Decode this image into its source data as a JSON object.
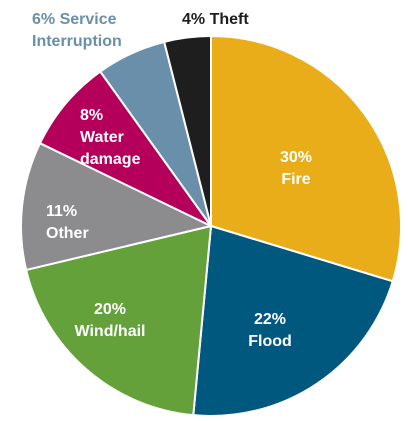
{
  "chart_data": {
    "type": "pie",
    "slices": [
      {
        "label": "Fire",
        "value": 30,
        "value_text": "30%",
        "color": "#E8AD18",
        "label_color": "#ffffff",
        "label_lines": [
          "30%",
          "Fire"
        ]
      },
      {
        "label": "Flood",
        "value": 22,
        "value_text": "22%",
        "color": "#00587F",
        "label_color": "#ffffff",
        "label_lines": [
          "22%",
          "Flood"
        ]
      },
      {
        "label": "Wind/hail",
        "value": 20,
        "value_text": "20%",
        "color": "#64A13A",
        "label_color": "#ffffff",
        "label_lines": [
          "20%",
          "Wind/hail"
        ]
      },
      {
        "label": "Other",
        "value": 11,
        "value_text": "11%",
        "color": "#8C8C8E",
        "label_color": "#ffffff",
        "label_lines": [
          "11%",
          "Other"
        ]
      },
      {
        "label": "Water damage",
        "value": 8,
        "value_text": "8%",
        "color": "#B4005A",
        "label_color": "#ffffff",
        "label_lines": [
          "8%",
          "Water",
          "damage"
        ]
      },
      {
        "label": "Service Interruption",
        "value": 6,
        "value_text": "6%",
        "color": "#6A8FAA",
        "label_color": "#6A8FAA",
        "label_lines": [
          "6% Service",
          "Interruption"
        ],
        "label_outside": true
      },
      {
        "label": "Theft",
        "value": 4,
        "value_text": "4%",
        "color": "#1E1E1E",
        "label_color": "#1E1E1E",
        "label_lines": [
          "4% Theft"
        ],
        "label_outside": true
      }
    ],
    "start": "top",
    "direction": "clockwise",
    "slice_border_color": "#ffffff"
  }
}
